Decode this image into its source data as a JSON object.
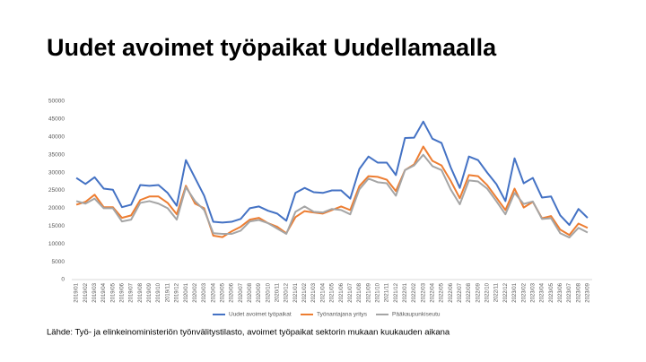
{
  "chart_data": {
    "type": "line",
    "title": "Uudet avoimet työpaikat Uudellamaalla",
    "source": "Lähde: Työ- ja elinkeinoministeriön työnvälitystilasto, avoimet työpaikat sektorin mukaan kuukauden aikana",
    "categories": [
      "2019/01",
      "2019/02",
      "2019/03",
      "2019/04",
      "2019/05",
      "2019/06",
      "2019/07",
      "2019/08",
      "2019/09",
      "2019/10",
      "2019/11",
      "2019/12",
      "2020/01",
      "2020/02",
      "2020/03",
      "2020/04",
      "2020/05",
      "2020/06",
      "2020/07",
      "2020/08",
      "2020/09",
      "2020/10",
      "2020/11",
      "2020/12",
      "2021/01",
      "2021/02",
      "2021/03",
      "2021/04",
      "2021/05",
      "2021/06",
      "2021/07",
      "2021/08",
      "2021/09",
      "2021/10",
      "2021/11",
      "2021/12",
      "2022/01",
      "2022/02",
      "2022/03",
      "2022/04",
      "2022/05",
      "2022/06",
      "2022/07",
      "2022/08",
      "2022/09",
      "2022/10",
      "2022/11",
      "2022/12",
      "2023/01",
      "2023/02",
      "2023/03",
      "2023/04",
      "2023/05",
      "2023/06",
      "2023/07",
      "2023/08",
      "2023/09"
    ],
    "series": [
      {
        "name": "Uudet avoimet työpaikat",
        "color": "#4472c4",
        "values": [
          28500,
          26800,
          28700,
          25500,
          25200,
          20300,
          21000,
          26500,
          26300,
          26500,
          24300,
          20700,
          33500,
          28500,
          23500,
          16200,
          16000,
          16200,
          17000,
          20000,
          20500,
          19300,
          18500,
          16500,
          24300,
          25700,
          24500,
          24300,
          25000,
          25000,
          22700,
          31000,
          34500,
          32800,
          32800,
          29300,
          39700,
          39800,
          44300,
          39500,
          38300,
          31500,
          25700,
          34500,
          33500,
          30000,
          26800,
          22000,
          34000,
          27000,
          28500,
          23000,
          23300,
          18000,
          15300,
          19800,
          17300
        ]
      },
      {
        "name": "Työnantajana yritys",
        "color": "#ed7d31",
        "values": [
          21000,
          21800,
          23800,
          20300,
          20300,
          17300,
          18000,
          22300,
          23300,
          23300,
          21500,
          18300,
          26300,
          21300,
          20000,
          12300,
          11900,
          13500,
          14800,
          16800,
          17300,
          15800,
          14800,
          13000,
          17500,
          19200,
          18800,
          18500,
          19500,
          20500,
          19500,
          26200,
          29000,
          28800,
          28000,
          24800,
          30700,
          32300,
          37300,
          33300,
          32000,
          27700,
          22800,
          29300,
          29000,
          26500,
          23000,
          19500,
          25500,
          20200,
          21800,
          17200,
          17800,
          14000,
          12500,
          15700,
          14500
        ]
      },
      {
        "name": "Pääkaupunkiseutu",
        "color": "#a5a5a5",
        "values": [
          22000,
          21300,
          22700,
          20000,
          20000,
          16300,
          16800,
          21500,
          22000,
          21300,
          20000,
          16800,
          25900,
          22000,
          19500,
          13000,
          12800,
          12800,
          13700,
          16300,
          16700,
          15800,
          14300,
          12800,
          19000,
          20500,
          19000,
          18800,
          19800,
          19500,
          18300,
          25300,
          28300,
          27300,
          27000,
          23500,
          30700,
          32000,
          35000,
          31800,
          30700,
          25300,
          21100,
          27800,
          27500,
          25500,
          22000,
          18300,
          24300,
          21200,
          21900,
          17000,
          17200,
          13000,
          11800,
          14500,
          13200
        ]
      }
    ],
    "ylim": [
      0,
      50000
    ],
    "yticks": [
      0,
      5000,
      10000,
      15000,
      20000,
      25000,
      30000,
      35000,
      40000,
      45000,
      50000
    ],
    "grid": false
  }
}
